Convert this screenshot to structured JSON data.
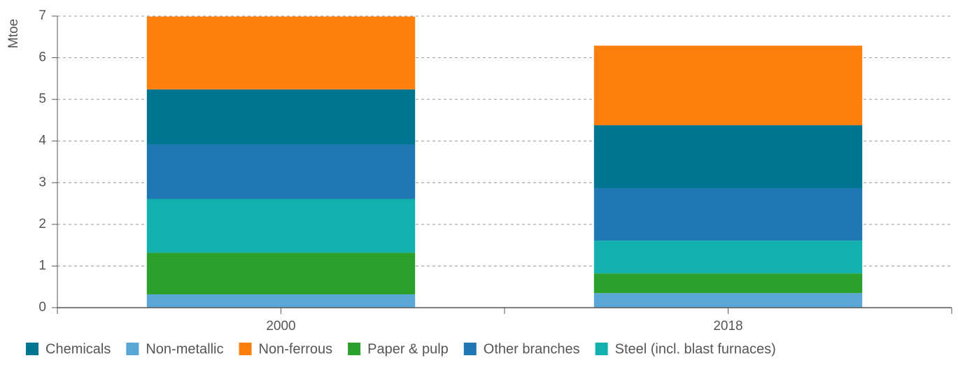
{
  "chart_data": {
    "type": "stacked_bar",
    "ylabel": "Mtoe",
    "categories": [
      "2000",
      "2018"
    ],
    "series": [
      {
        "name": "Chemicals",
        "color": "#00758f",
        "values": [
          1.32,
          1.51
        ]
      },
      {
        "name": "Non-metallic",
        "color": "#5aa6d6",
        "values": [
          0.32,
          0.35
        ]
      },
      {
        "name": "Non-ferrous",
        "color": "#ff7f0e",
        "values": [
          1.75,
          1.91
        ]
      },
      {
        "name": "Paper & pulp",
        "color": "#2ca02c",
        "values": [
          1.0,
          0.47
        ]
      },
      {
        "name": "Other branches",
        "color": "#1f77b4",
        "values": [
          1.31,
          1.26
        ]
      },
      {
        "name": "Steel (incl. blast furnaces)",
        "color": "#12b0ae",
        "values": [
          1.29,
          0.79
        ]
      }
    ],
    "ylim": [
      0,
      7
    ],
    "yticks": [
      0,
      1,
      2,
      3,
      4,
      5,
      6,
      7
    ],
    "grid": true,
    "legend": "bottom"
  }
}
